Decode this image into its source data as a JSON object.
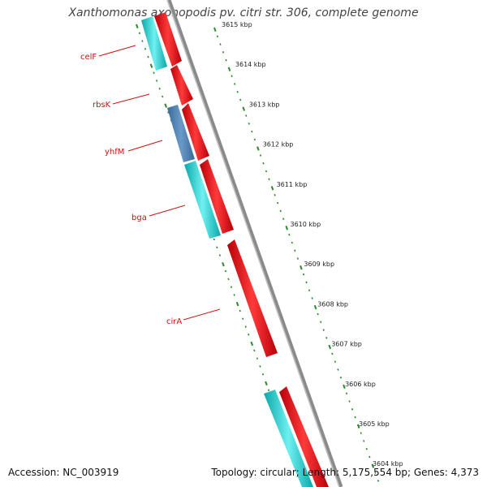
{
  "title": "Xanthomonas axonopodis pv. citri str. 306, complete genome",
  "footer": {
    "accession": "Accession: NC_003919",
    "info": "Topology: circular; Length: 5,175,554 bp; Genes: 4,373"
  },
  "kbp_ticks": [
    "3615 kbp",
    "3614 kbp",
    "3613 kbp",
    "3612 kbp",
    "3611 kbp",
    "3610 kbp",
    "3609 kbp",
    "3608 kbp",
    "3607 kbp",
    "3606 kbp",
    "3605 kbp",
    "3604 kbp"
  ],
  "gene_labels": [
    "celF",
    "rbsK",
    "yhfM",
    "bga",
    "cirA"
  ],
  "colors": {
    "forward_cds": "#e8141e",
    "reverse_cds": "#22c8cc",
    "reverse_cds_alt": "#4a7fb4",
    "label": "#cc1111",
    "ticks": "#2a8a2a",
    "backbone": "#888888"
  }
}
